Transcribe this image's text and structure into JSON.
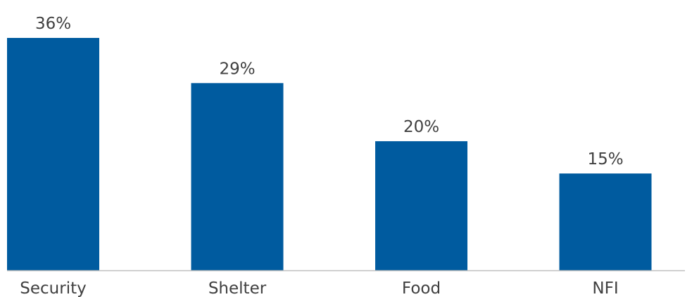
{
  "chart_data": {
    "type": "bar",
    "categories": [
      "Security",
      "Shelter",
      "Food",
      "NFI"
    ],
    "values": [
      36,
      29,
      20,
      15
    ],
    "data_labels": [
      "36%",
      "29%",
      "20%",
      "15%"
    ],
    "title": "",
    "xlabel": "",
    "ylabel": "",
    "ylim": [
      0,
      36
    ],
    "grid": false,
    "legend": "none",
    "colors": {
      "bar": "#005b9f",
      "axis": "#bfbfbf",
      "text": "#404040"
    }
  }
}
